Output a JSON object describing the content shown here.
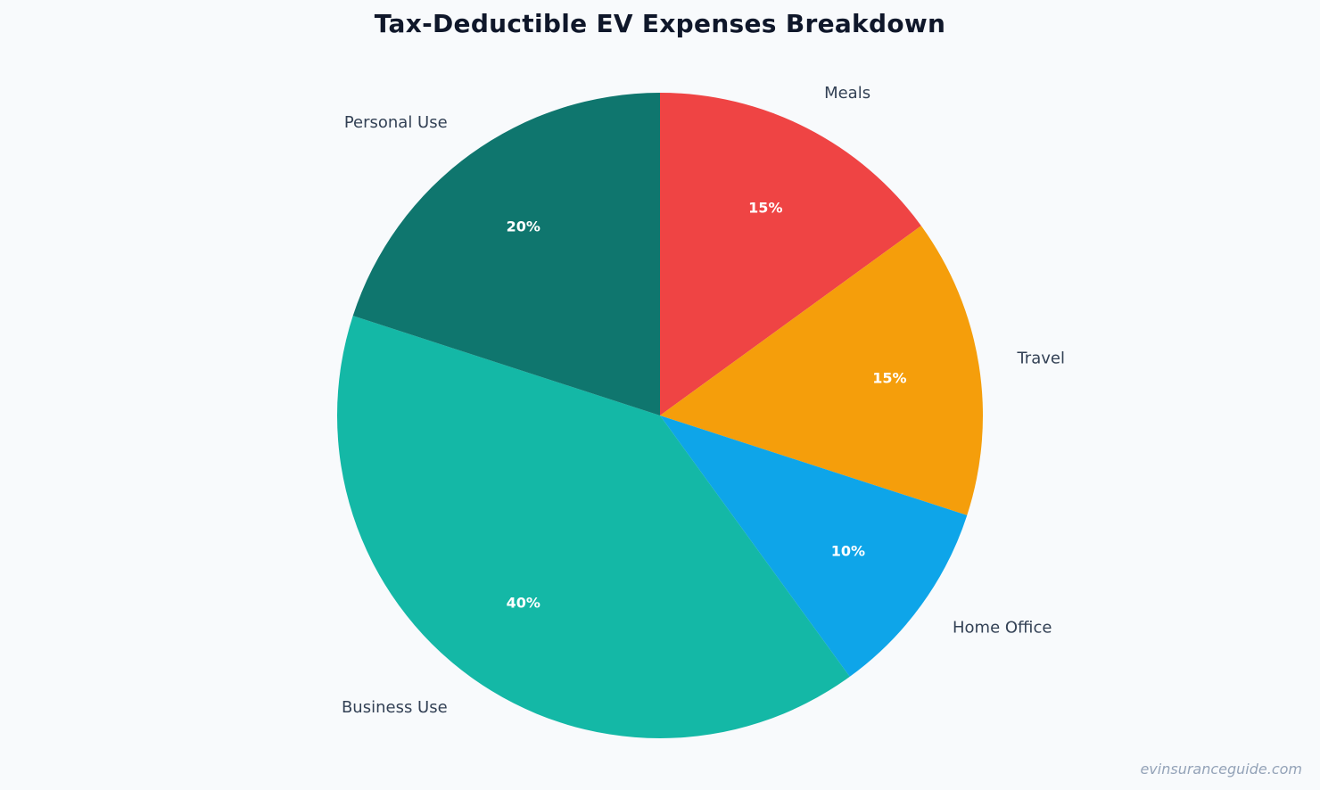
{
  "chart_data": {
    "type": "pie",
    "title": "Tax-Deductible EV Expenses Breakdown",
    "categories": [
      "Meals",
      "Travel",
      "Home Office",
      "Business Use",
      "Personal Use"
    ],
    "values": [
      15,
      15,
      10,
      40,
      20
    ],
    "percent_labels": [
      "15%",
      "15%",
      "10%",
      "40%",
      "20%"
    ],
    "colors": [
      "#ef4444",
      "#f59e0b",
      "#0ea5e9",
      "#14b8a6",
      "#0f766e"
    ],
    "start_angle": "12 o'clock",
    "direction": "clockwise",
    "legend": "none"
  },
  "watermark": "evinsuranceguide.com"
}
